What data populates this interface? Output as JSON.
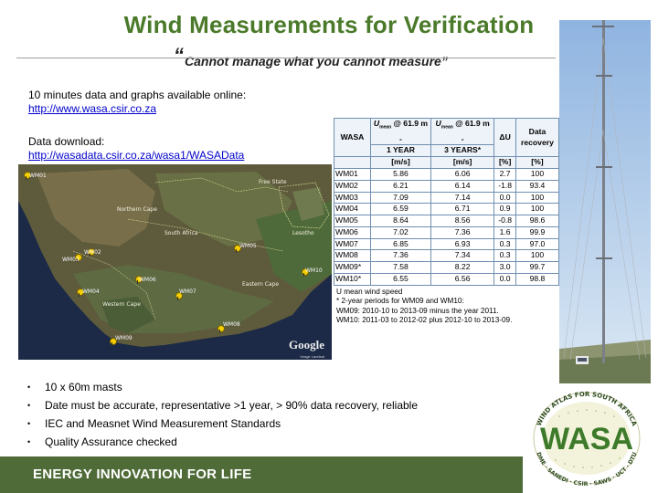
{
  "title": "Wind Measurements for Verification",
  "subtitle_open_quote": "“",
  "subtitle": "Cannot manage what you cannot measure”",
  "online_text": "10 minutes data and graphs available online:",
  "online_link": "http://www.wasa.csir.co.za",
  "download_text": "Data download:",
  "download_link": "http://wasadata.csir.co.za/wasa1/WASAData",
  "map": {
    "regions": [
      "Free State",
      "Northern Cape",
      "Lesotho",
      "South Africa",
      "Eastern Cape",
      "Western Cape"
    ],
    "masts": [
      "WM01",
      "WM02",
      "WM03",
      "WM04",
      "WM05",
      "WM06",
      "WM07",
      "WM08",
      "WM09",
      "WM10"
    ],
    "attribution": "Google",
    "copyright": "Image Landsat"
  },
  "table": {
    "col_wasa": "WASA",
    "col_umean_1yr_label": "U",
    "col_umean_1yr_sub": "mean",
    "col_umean_1yr_rest": "@ 61.9 m",
    "col_dash": "-",
    "col_1year": "1 YEAR",
    "col_3years": "3 YEARS*",
    "col_du": "ΔU",
    "col_recovery": "Data recovery",
    "unit_ms": "[m/s]",
    "unit_pct": "[%]",
    "rows": [
      {
        "id": "WM01",
        "y1": "5.86",
        "y3": "6.06",
        "du": "2.7",
        "rec": "100"
      },
      {
        "id": "WM02",
        "y1": "6.21",
        "y3": "6.14",
        "du": "-1.8",
        "rec": "93.4"
      },
      {
        "id": "WM03",
        "y1": "7.09",
        "y3": "7.14",
        "du": "0.0",
        "rec": "100"
      },
      {
        "id": "WM04",
        "y1": "6.59",
        "y3": "6.71",
        "du": "0.9",
        "rec": "100"
      },
      {
        "id": "WM05",
        "y1": "8.64",
        "y3": "8.56",
        "du": "-0.8",
        "rec": "98.6"
      },
      {
        "id": "WM06",
        "y1": "7.02",
        "y3": "7.36",
        "du": "1.6",
        "rec": "99.9"
      },
      {
        "id": "WM07",
        "y1": "6.85",
        "y3": "6.93",
        "du": "0.3",
        "rec": "97.0"
      },
      {
        "id": "WM08",
        "y1": "7.36",
        "y3": "7.34",
        "du": "0.3",
        "rec": "100"
      },
      {
        "id": "WM09*",
        "y1": "7.58",
        "y3": "8.22",
        "du": "3.0",
        "rec": "99.7"
      },
      {
        "id": "WM10*",
        "y1": "6.55",
        "y3": "6.56",
        "du": "0.0",
        "rec": "98.8"
      }
    ],
    "note1": "U mean wind speed",
    "note2": "* 2-year periods for WM09 and WM10:",
    "note3": "WM09: 2010-10 to 2013-09 minus the year 2011.",
    "note4": "WM10: 2011-03 to 2012-02 plus 2012-10 to 2013-09."
  },
  "bullets": [
    "10 x 60m masts",
    "Date must be accurate, representative >1 year, > 90% data recovery, reliable",
    "IEC and Measnet Wind Measurement Standards",
    "Quality Assurance checked"
  ],
  "logo": {
    "ring_top": "WIND ATLAS FOR SOUTH AFRICA",
    "main": "WASA",
    "ring_bottom": "DME · SANEDI · CSIR · SAWS · UCT · DTU"
  },
  "footer": "ENERGY INNOVATION FOR LIFE",
  "colors": {
    "title_green": "#4a7a2a",
    "footer_green": "#4e6b38",
    "link_blue": "#0000cc",
    "table_border": "#6f8fb0"
  }
}
